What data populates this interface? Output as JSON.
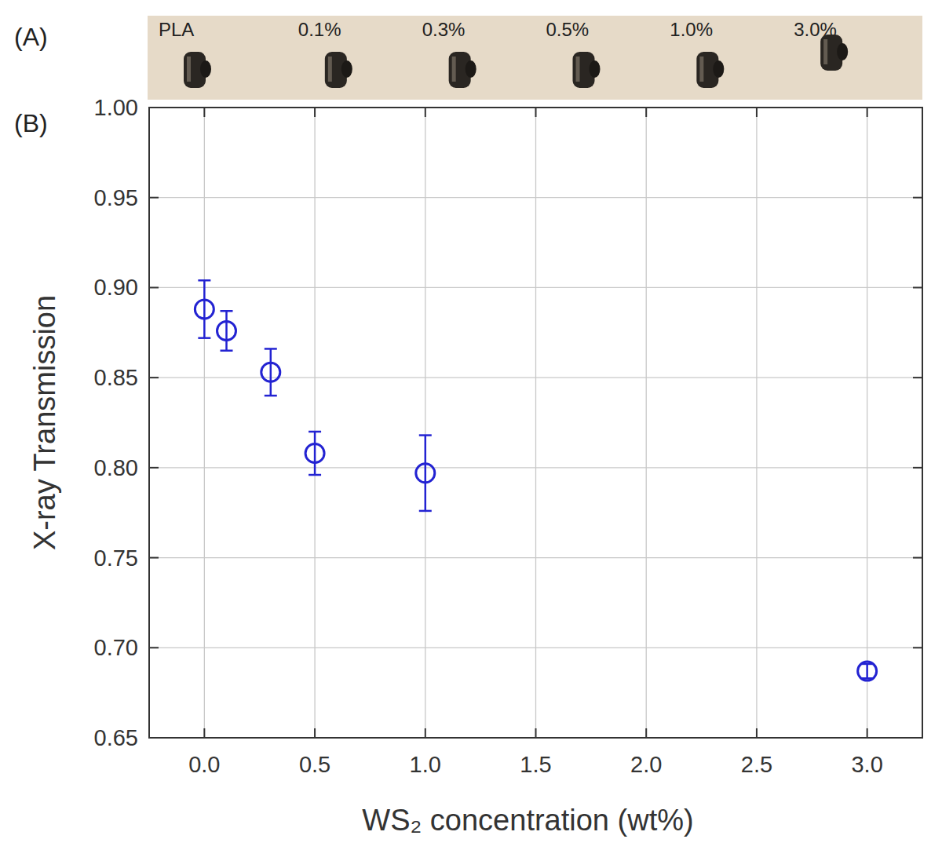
{
  "photo_strip": {
    "panel_label": "(A)",
    "labels": [
      "PLA",
      "0.1%",
      "0.3%",
      "0.5%",
      "1.0%",
      "3.0%"
    ]
  },
  "chart_data": {
    "type": "scatter",
    "panel_label": "(B)",
    "x_label": "WS₂ concentration (wt%)",
    "y_label": "X-ray Transmission",
    "x": [
      0,
      0.1,
      0.3,
      0.5,
      1.0,
      3.0
    ],
    "values": [
      0.888,
      0.876,
      0.853,
      0.808,
      0.797,
      0.687
    ],
    "errors": [
      0.016,
      0.011,
      0.013,
      0.012,
      0.021,
      0.004
    ],
    "color": "#2323d2",
    "marker": "open-circle",
    "xlim": [
      -0.25,
      3.25
    ],
    "xticks": [
      {
        "value": 0,
        "label": "0.0"
      },
      0.5,
      {
        "value": 1,
        "label": "1.0"
      },
      1.5,
      {
        "value": 2,
        "label": "2.0"
      },
      2.5,
      {
        "value": 3,
        "label": "3.0"
      }
    ],
    "ylim": [
      0.65,
      1.0
    ],
    "yticks": [
      0.65,
      {
        "value": 0.7,
        "label": "0.70"
      },
      0.75,
      {
        "value": 0.8,
        "label": "0.80"
      },
      0.85,
      {
        "value": 0.9,
        "label": "0.90"
      },
      0.95,
      {
        "value": 1.0,
        "label": "1.00"
      }
    ],
    "grid": true
  }
}
